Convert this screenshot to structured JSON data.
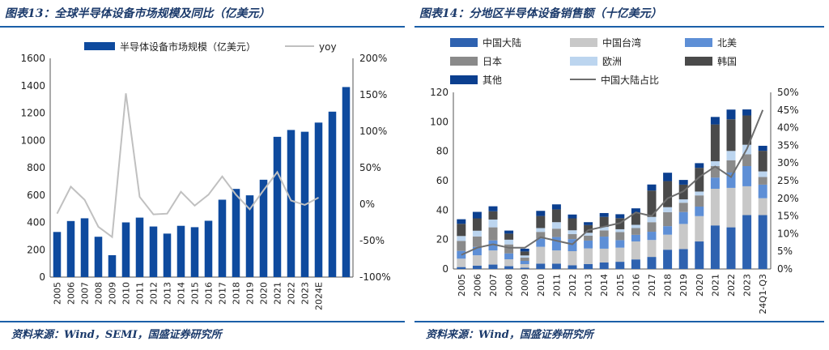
{
  "left_panel": {
    "title": "图表13：全球半导体设备市场规模及同比（亿美元）",
    "source": "资料来源：Wind，SEMI，国盛证券研究所"
  },
  "right_panel": {
    "title": "图表14：分地区半导体设备销售额（十亿美元）",
    "source": "资料来源：Wind，国盛证券研究所"
  },
  "chart_data": [
    {
      "type": "bar",
      "title": "图表13：全球半导体设备市场规模及同比（亿美元）",
      "categories": [
        "2005",
        "2006",
        "2007",
        "2008",
        "2009",
        "2010",
        "2011",
        "2012",
        "2013",
        "2014",
        "2015",
        "2016",
        "2017",
        "2018",
        "2019",
        "2020",
        "2021",
        "2022",
        "2023",
        "2024E"
      ],
      "series": [
        {
          "name": "半导体设备市场规模（亿美元）",
          "type": "bar",
          "axis": "left",
          "color": "#0e4a9e",
          "values": [
            330,
            410,
            430,
            295,
            160,
            400,
            435,
            370,
            318,
            375,
            365,
            412,
            566,
            645,
            598,
            712,
            1026,
            1076,
            1063,
            1130
          ]
        },
        {
          "name": "yoy",
          "type": "line",
          "axis": "right",
          "color": "#c0c0c0",
          "values": [
            -13,
            24,
            6,
            -31,
            -45,
            152,
            10,
            -14,
            -13,
            17,
            -2,
            13,
            38,
            13,
            -7,
            19,
            44,
            5,
            -1,
            9
          ]
        }
      ],
      "extra_bars": [
        1210,
        1390
      ],
      "ylim": [
        0,
        1600
      ],
      "yticks": [
        0,
        200,
        400,
        600,
        800,
        1000,
        1200,
        1400,
        1600
      ],
      "y2lim": [
        -100,
        200
      ],
      "y2ticks": [
        "-100%",
        "-50%",
        "0%",
        "50%",
        "100%",
        "150%",
        "200%"
      ],
      "legend_position": "top"
    },
    {
      "type": "bar",
      "stacked": true,
      "title": "图表14：分地区半导体设备销售额（十亿美元）",
      "categories": [
        "2005",
        "2006",
        "2007",
        "2008",
        "2009",
        "2010",
        "2011",
        "2012",
        "2013",
        "2014",
        "2015",
        "2016",
        "2017",
        "2018",
        "2019",
        "2020",
        "2021",
        "2022",
        "2023",
        "24Q1-Q3"
      ],
      "series": [
        {
          "name": "中国大陆",
          "color": "#2e62b0",
          "values": [
            1.3,
            2.3,
            3.0,
            1.9,
            0.9,
            3.6,
            3.6,
            2.5,
            3.4,
            4.4,
            4.9,
            6.5,
            8.2,
            13.1,
            13.5,
            18.7,
            29.6,
            28.3,
            36.6,
            36.6
          ]
        },
        {
          "name": "中国台湾",
          "color": "#c8c8c8",
          "values": [
            5.7,
            7.0,
            9.6,
            4.7,
            2.4,
            11.5,
            9.0,
            9.6,
            10.6,
            9.4,
            9.6,
            12.2,
            11.5,
            10.2,
            17.1,
            17.2,
            24.9,
            26.8,
            19.6,
            11.5
          ]
        },
        {
          "name": "北美",
          "color": "#5e8fd6",
          "values": [
            5.3,
            5.7,
            6.8,
            4.0,
            2.2,
            5.6,
            9.1,
            8.2,
            5.3,
            8.2,
            5.1,
            4.5,
            5.6,
            5.8,
            8.1,
            6.5,
            7.6,
            10.4,
            13.7,
            9.2
          ]
        },
        {
          "name": "日本",
          "color": "#8a8a8a",
          "values": [
            6.8,
            7.1,
            8.9,
            6.1,
            2.2,
            4.5,
            5.7,
            3.4,
            3.4,
            4.2,
            5.5,
            4.6,
            6.5,
            9.5,
            6.3,
            7.6,
            7.8,
            8.4,
            8.0,
            5.2
          ]
        },
        {
          "name": "欧洲",
          "color": "#bcd5ef",
          "values": [
            3.3,
            3.9,
            5.3,
            3.2,
            1.5,
            2.6,
            4.4,
            2.6,
            1.9,
            2.4,
            1.9,
            2.2,
            3.6,
            3.4,
            2.3,
            2.6,
            3.3,
            6.3,
            6.5,
            3.8
          ]
        },
        {
          "name": "韩国",
          "color": "#4a4a4a",
          "values": [
            8.3,
            8.4,
            5.6,
            4.1,
            2.7,
            8.2,
            8.7,
            8.1,
            5.2,
            6.8,
            7.5,
            7.7,
            17.9,
            17.7,
            10.0,
            16.1,
            25.0,
            21.5,
            19.9,
            14.0
          ]
        },
        {
          "name": "其他",
          "color": "#0b3f8f",
          "values": [
            3.1,
            4.4,
            3.4,
            2.1,
            1.9,
            3.5,
            3.4,
            2.6,
            2.0,
            2.6,
            2.7,
            3.5,
            4.1,
            5.7,
            3.2,
            3.2,
            5.1,
            6.6,
            4.1,
            3.4
          ]
        },
        {
          "name": "中国大陆占比",
          "type": "line",
          "axis": "right",
          "color": "#6e6e6e",
          "values": [
            4,
            6,
            7,
            6,
            6,
            9,
            8,
            7,
            11,
            12,
            13,
            16,
            15,
            20,
            22,
            26,
            29,
            26,
            34,
            45
          ]
        }
      ],
      "ylim": [
        0,
        120
      ],
      "yticks": [
        0,
        20,
        40,
        60,
        80,
        100,
        120
      ],
      "y2lim": [
        0,
        50
      ],
      "y2ticks": [
        "0%",
        "5%",
        "10%",
        "15%",
        "20%",
        "25%",
        "30%",
        "35%",
        "40%",
        "45%",
        "50%"
      ],
      "legend_position": "top"
    }
  ]
}
